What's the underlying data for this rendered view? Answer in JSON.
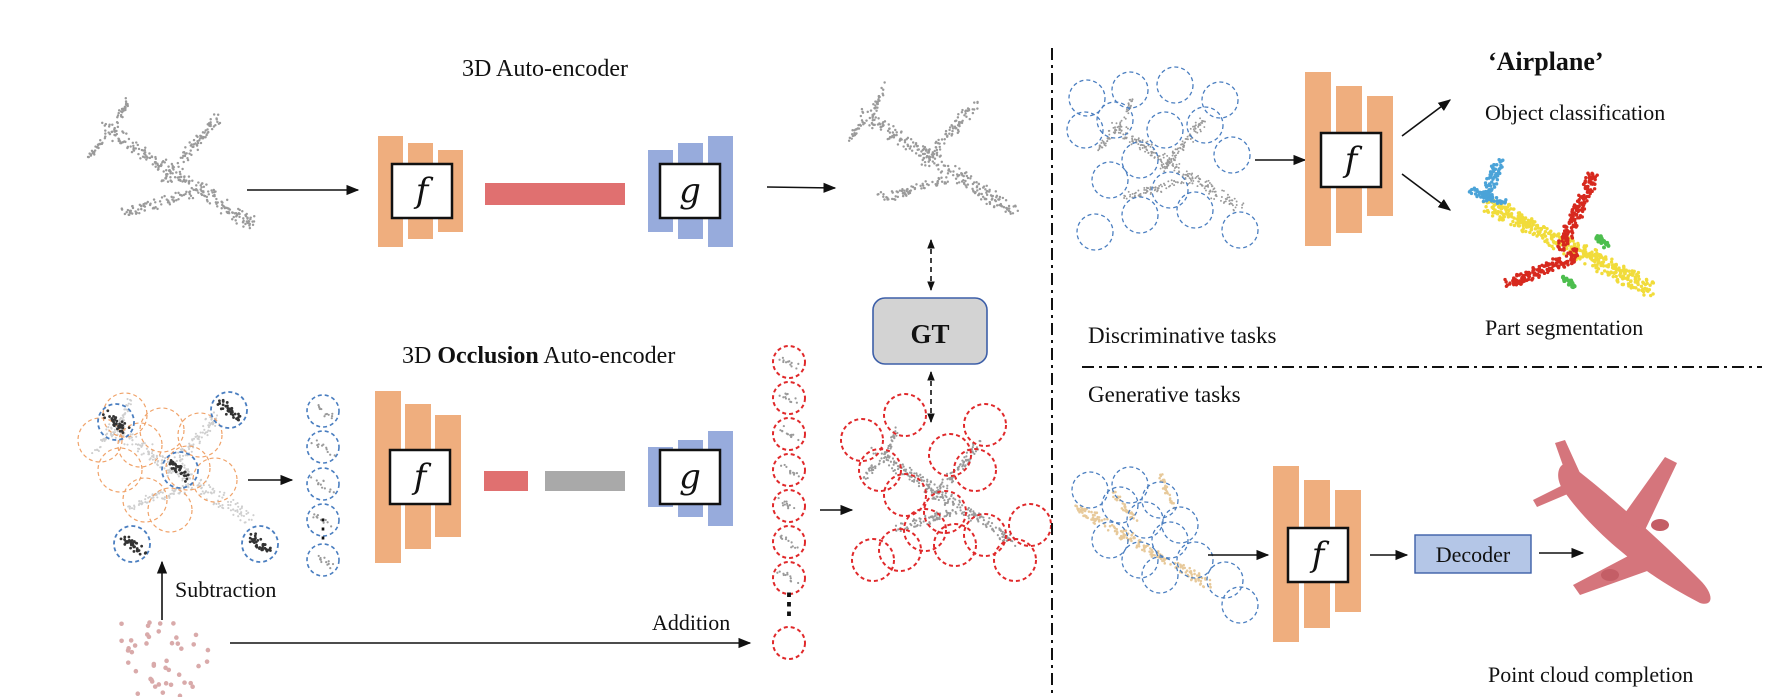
{
  "autoencoder": {
    "title": "3D Auto-encoder",
    "encoder_symbol": "f",
    "decoder_symbol": "g"
  },
  "occlusion_autoencoder": {
    "title_prefix": "3D ",
    "title_bold": "Occlusion",
    "title_suffix": " Auto-encoder",
    "encoder_symbol": "f",
    "decoder_symbol": "g",
    "subtraction_label": "Subtraction",
    "addition_label": "Addition",
    "ellipsis": "⋮"
  },
  "ground_truth": {
    "label": "GT"
  },
  "discriminative": {
    "section_label": "Discriminative tasks",
    "encoder_symbol": "f",
    "class_name": "‘Airplane’",
    "task_classification": "Object classification",
    "task_segmentation": "Part segmentation"
  },
  "generative": {
    "section_label": "Generative tasks",
    "encoder_symbol": "f",
    "decoder_label": "Decoder",
    "task_completion": "Point cloud completion"
  },
  "colors": {
    "encoder": "#EFAE7E",
    "decoder_blocks": "#97ABDC",
    "latent_full": "#E07070",
    "latent_masked": "#A9A9A9",
    "gt_box": "#D3D3D3",
    "gt_border": "#3D5FA8",
    "decoder_box": "#B4C6E7",
    "visible_patch": "#4A7EC0",
    "masked_patch": "#F0A36A",
    "predicted_patch": "#E0292B",
    "points": "#9A9A9A",
    "seg_body": "#F1DC3B",
    "seg_wing": "#D7291E",
    "seg_tail": "#4BA3D8",
    "seg_engine": "#4DBE4E",
    "completion": "#D5757C",
    "partial_points": "#E7C99A"
  },
  "icons": [
    "airplane-point-cloud-icon",
    "segmented-airplane-icon",
    "completed-airplane-icon",
    "patch-circle-icon"
  ]
}
